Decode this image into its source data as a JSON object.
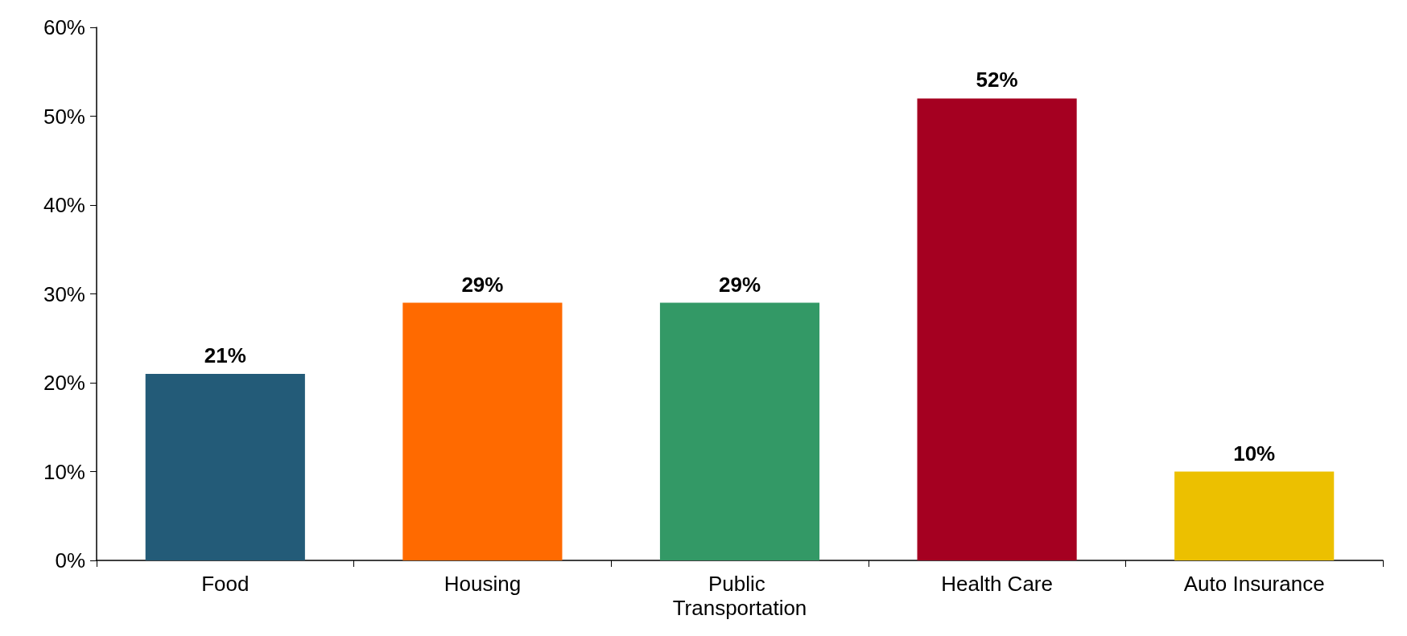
{
  "chart_data": {
    "type": "bar",
    "categories": [
      "Food",
      "Housing",
      "Public Transportation",
      "Health Care",
      "Auto Insurance"
    ],
    "values": [
      21,
      29,
      29,
      52,
      10
    ],
    "colors": [
      "#235b78",
      "#ff6a00",
      "#339966",
      "#a50021",
      "#ecc000"
    ],
    "value_labels": [
      "21%",
      "29%",
      "29%",
      "52%",
      "10%"
    ],
    "ylim": [
      0,
      60
    ],
    "yticks": [
      {
        "value": 0,
        "label": "0%"
      },
      {
        "value": 10,
        "label": "10%"
      },
      {
        "value": 20,
        "label": "20%"
      },
      {
        "value": 30,
        "label": "30%"
      },
      {
        "value": 40,
        "label": "40%"
      },
      {
        "value": 50,
        "label": "50%"
      },
      {
        "value": 60,
        "label": "60%"
      }
    ],
    "grid": false
  }
}
